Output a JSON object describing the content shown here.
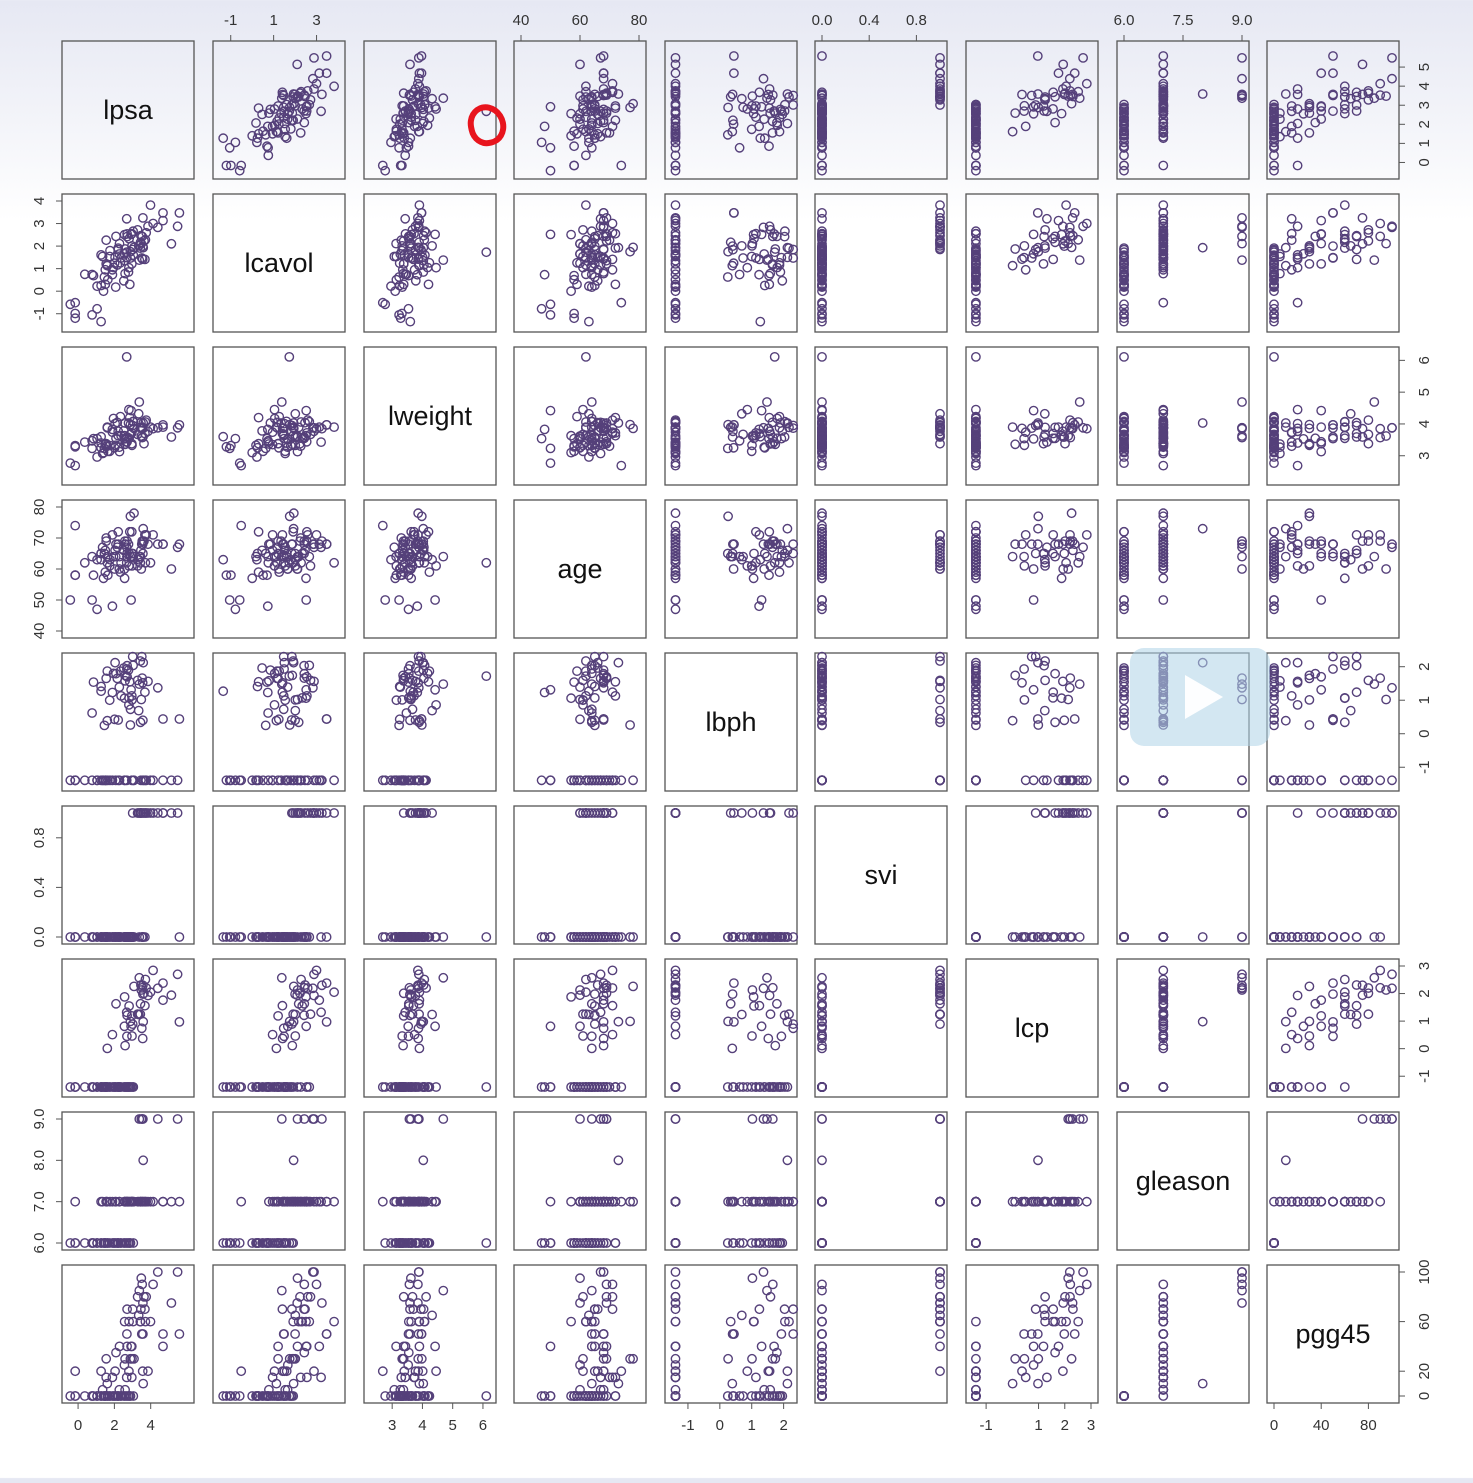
{
  "chart_data": {
    "type": "scatter",
    "variables": [
      {
        "name": "lpsa",
        "range": [
          -0.5,
          6.0
        ],
        "ticks": [
          0,
          2,
          4
        ],
        "tick_labels": [
          "0",
          "2",
          "4"
        ],
        "right_ticks": [
          0,
          1,
          2,
          3,
          4,
          5
        ],
        "right_labels": [
          "0",
          "1",
          "2",
          "3",
          "4",
          "5"
        ]
      },
      {
        "name": "lcavol",
        "range": [
          -1.5,
          4.0
        ],
        "ticks": [
          -1,
          1,
          3
        ],
        "tick_labels": [
          "-1",
          "1",
          "3"
        ],
        "left_ticks": [
          -1,
          0,
          1,
          2,
          3,
          4
        ],
        "left_labels": [
          "-1",
          "0",
          "1",
          "2",
          "3",
          "4"
        ]
      },
      {
        "name": "lweight",
        "range": [
          2.3,
          6.2
        ],
        "ticks": [
          3,
          4,
          5,
          6
        ],
        "tick_labels": [
          "3",
          "4",
          "5",
          "6"
        ],
        "right_ticks": [
          3,
          4,
          5,
          6
        ],
        "right_labels": [
          "3",
          "4",
          "5",
          "6"
        ]
      },
      {
        "name": "age",
        "range": [
          40,
          80
        ],
        "ticks": [
          40,
          60,
          80
        ],
        "tick_labels": [
          "40",
          "60",
          "80"
        ],
        "left_ticks": [
          40,
          50,
          60,
          70,
          80
        ],
        "left_labels": [
          "40",
          "50",
          "60",
          "70",
          "80"
        ]
      },
      {
        "name": "lbph",
        "range": [
          -1.5,
          2.2
        ],
        "ticks": [
          -1,
          0,
          1,
          2
        ],
        "tick_labels": [
          "-1",
          "0",
          "1",
          "2"
        ],
        "right_ticks": [
          -1,
          0,
          1,
          2
        ],
        "right_labels": [
          "-1",
          "0",
          "1",
          "2"
        ]
      },
      {
        "name": "svi",
        "range": [
          0,
          1
        ],
        "ticks": [
          0.0,
          0.4,
          0.8
        ],
        "tick_labels": [
          "0.0",
          "0.4",
          "0.8"
        ],
        "left_ticks": [
          0.0,
          0.4,
          0.8
        ],
        "left_labels": [
          "0.0",
          "0.4",
          "0.8"
        ]
      },
      {
        "name": "lcp",
        "range": [
          -1.5,
          3.0
        ],
        "ticks": [
          -1,
          1,
          2,
          3
        ],
        "tick_labels": [
          "-1",
          "1",
          "2",
          "3"
        ],
        "right_ticks": [
          -1,
          0,
          1,
          2,
          3
        ],
        "right_labels": [
          "-1",
          "0",
          "1",
          "2",
          "3"
        ]
      },
      {
        "name": "gleason",
        "range": [
          6,
          9
        ],
        "ticks": [
          6.0,
          7.5,
          9.0
        ],
        "tick_labels": [
          "6.0",
          "7.5",
          "9.0"
        ],
        "left_ticks": [
          6.0,
          7.0,
          8.0,
          9.0
        ],
        "left_labels": [
          "6.0",
          "7.0",
          "8.0",
          "9.0"
        ]
      },
      {
        "name": "pgg45",
        "range": [
          0,
          100
        ],
        "ticks": [
          0,
          40,
          80
        ],
        "tick_labels": [
          "0",
          "40",
          "80"
        ],
        "right_ticks": [
          0,
          20,
          60,
          100
        ],
        "right_labels": [
          "0",
          "20",
          "60",
          "100"
        ]
      }
    ],
    "points": [
      [
        -0.43,
        -0.58,
        2.77,
        50,
        -1.39,
        0,
        -1.39,
        6,
        0
      ],
      [
        -0.16,
        -0.99,
        3.32,
        58,
        -1.39,
        0,
        -1.39,
        6,
        0
      ],
      [
        -0.16,
        -0.51,
        2.69,
        74,
        -1.39,
        0,
        -1.39,
        7,
        20
      ],
      [
        -0.16,
        -1.2,
        3.28,
        58,
        -1.39,
        0,
        -1.39,
        6,
        0
      ],
      [
        0.37,
        0.75,
        3.43,
        62,
        -1.39,
        0,
        -1.39,
        6,
        0
      ],
      [
        0.77,
        -1.05,
        3.23,
        50,
        -1.39,
        0,
        -1.39,
        6,
        0
      ],
      [
        0.77,
        0.74,
        3.47,
        64,
        0.62,
        0,
        -1.39,
        6,
        0
      ],
      [
        0.85,
        0.69,
        3.54,
        58,
        1.54,
        0,
        -1.39,
        6,
        0
      ],
      [
        1.05,
        -0.78,
        3.54,
        47,
        -1.39,
        0,
        -1.39,
        6,
        0
      ],
      [
        1.05,
        0.22,
        2.96,
        63,
        -1.39,
        0,
        -1.39,
        6,
        0
      ],
      [
        1.27,
        0.25,
        3.25,
        65,
        1.41,
        0,
        -1.39,
        6,
        0
      ],
      [
        1.27,
        -1.35,
        3.6,
        63,
        1.27,
        0,
        -1.39,
        6,
        0
      ],
      [
        1.27,
        1.61,
        3.4,
        65,
        -1.39,
        0,
        -1.39,
        7,
        20
      ],
      [
        1.35,
        1.54,
        3.07,
        67,
        -1.39,
        0,
        -1.39,
        7,
        5
      ],
      [
        1.4,
        0.0,
        3.1,
        57,
        -1.39,
        0,
        -1.39,
        6,
        0
      ],
      [
        1.45,
        0.63,
        3.23,
        65,
        0.25,
        0,
        -1.39,
        6,
        0
      ],
      [
        1.5,
        0.95,
        3.35,
        66,
        -1.39,
        0,
        -1.39,
        6,
        0
      ],
      [
        1.5,
        0.3,
        3.38,
        59,
        -1.39,
        0,
        -1.39,
        6,
        0
      ],
      [
        1.55,
        1.21,
        3.38,
        69,
        1.65,
        0,
        -1.39,
        7,
        30
      ],
      [
        1.55,
        2.26,
        3.3,
        70,
        -1.39,
        0,
        -1.39,
        7,
        15
      ],
      [
        1.61,
        1.13,
        3.9,
        64,
        0.39,
        0,
        0.01,
        7,
        10
      ],
      [
        1.61,
        1.16,
        3.88,
        62,
        1.87,
        0,
        -1.39,
        6,
        0
      ],
      [
        1.64,
        0.51,
        3.14,
        58,
        -1.39,
        0,
        -1.39,
        6,
        0
      ],
      [
        1.74,
        1.54,
        3.14,
        61,
        1.0,
        0,
        -1.39,
        6,
        0
      ],
      [
        1.76,
        1.8,
        3.32,
        63,
        -1.39,
        0,
        -1.39,
        7,
        0
      ],
      [
        1.89,
        0.73,
        3.83,
        48,
        1.23,
        0,
        -1.39,
        6,
        0
      ],
      [
        1.89,
        0.95,
        3.74,
        71,
        -1.39,
        0,
        0.51,
        7,
        15
      ],
      [
        1.95,
        1.05,
        4.17,
        64,
        1.8,
        0,
        -1.39,
        6,
        0
      ],
      [
        2.01,
        1.24,
        3.25,
        60,
        0.43,
        0,
        -1.39,
        6,
        0
      ],
      [
        2.04,
        1.5,
        4.01,
        66,
        2.12,
        0,
        -1.39,
        7,
        20
      ],
      [
        2.07,
        0.18,
        3.33,
        64,
        -1.39,
        0,
        -1.39,
        6,
        0
      ],
      [
        2.09,
        2.43,
        3.55,
        68,
        1.79,
        0,
        1.63,
        7,
        35
      ],
      [
        2.16,
        1.16,
        4.05,
        67,
        1.65,
        0,
        -1.39,
        6,
        0
      ],
      [
        2.21,
        1.84,
        3.77,
        68,
        0.41,
        0,
        -1.39,
        6,
        0
      ],
      [
        2.21,
        1.91,
        3.63,
        72,
        -1.39,
        0,
        -1.39,
        6,
        0
      ],
      [
        2.27,
        1.65,
        3.27,
        60,
        1.39,
        0,
        -1.39,
        7,
        5
      ],
      [
        2.28,
        2.11,
        3.13,
        64,
        -1.39,
        0,
        -1.39,
        7,
        40
      ],
      [
        2.33,
        1.26,
        4.23,
        59,
        1.87,
        0,
        -1.39,
        6,
        0
      ],
      [
        2.37,
        1.47,
        3.63,
        62,
        1.13,
        0,
        -1.39,
        6,
        0
      ],
      [
        2.52,
        0.46,
        3.78,
        66,
        1.96,
        0,
        -1.39,
        6,
        0
      ],
      [
        2.55,
        1.66,
        3.53,
        60,
        -1.39,
        0,
        0.81,
        7,
        25
      ],
      [
        2.56,
        2.51,
        3.63,
        57,
        1.06,
        0,
        1.88,
        7,
        60
      ],
      [
        2.58,
        1.35,
        4.03,
        69,
        -1.39,
        0,
        -1.39,
        6,
        0
      ],
      [
        2.59,
        1.87,
        3.36,
        68,
        1.74,
        0,
        0.11,
        7,
        30
      ],
      [
        2.59,
        0.78,
        3.37,
        68,
        1.58,
        0,
        -1.39,
        7,
        5
      ],
      [
        2.68,
        3.21,
        3.43,
        67,
        -1.39,
        0,
        1.32,
        7,
        15
      ],
      [
        2.69,
        1.49,
        3.54,
        64,
        1.93,
        0,
        0.45,
        7,
        50
      ],
      [
        2.7,
        2.42,
        3.59,
        65,
        2.03,
        0,
        1.21,
        7,
        70
      ],
      [
        2.7,
        2.54,
        3.44,
        69,
        1.7,
        0,
        -1.39,
        7,
        40
      ],
      [
        2.78,
        0.85,
        4.03,
        68,
        1.9,
        0,
        -1.39,
        6,
        0
      ],
      [
        2.8,
        1.04,
        4.45,
        61,
        0.86,
        0,
        -1.39,
        7,
        20
      ],
      [
        2.81,
        2.33,
        3.55,
        65,
        1.07,
        0,
        1.55,
        7,
        60
      ],
      [
        2.88,
        1.75,
        3.98,
        77,
        0.26,
        0,
        0.99,
        7,
        30
      ],
      [
        2.89,
        1.47,
        3.67,
        64,
        0.73,
        0,
        -1.39,
        6,
        0
      ],
      [
        2.92,
        2.52,
        4.42,
        50,
        1.31,
        0,
        0.81,
        7,
        40
      ],
      [
        2.96,
        2.55,
        3.72,
        72,
        1.13,
        0,
        -1.39,
        7,
        15
      ],
      [
        2.96,
        1.21,
        3.38,
        65,
        -1.39,
        0,
        1.19,
        7,
        40
      ],
      [
        2.97,
        2.01,
        3.33,
        61,
        1.01,
        0,
        0.46,
        7,
        30
      ],
      [
        3.01,
        1.85,
        3.95,
        65,
        2.3,
        1,
        0.89,
        7,
        70
      ],
      [
        3.03,
        2.66,
        4.07,
        64,
        2.04,
        0,
        -1.39,
        7,
        60
      ],
      [
        3.04,
        1.6,
        4.08,
        64,
        -1.39,
        0,
        -1.39,
        6,
        0
      ],
      [
        3.08,
        1.94,
        3.86,
        78,
        -1.39,
        0,
        2.26,
        7,
        30
      ],
      [
        3.28,
        2.72,
        3.67,
        61,
        1.59,
        1,
        1.25,
        7,
        80
      ],
      [
        3.34,
        2.01,
        4.32,
        63,
        0.69,
        1,
        1.24,
        7,
        65
      ],
      [
        3.37,
        1.38,
        4.69,
        64,
        1.48,
        0,
        2.57,
        9,
        85
      ],
      [
        3.43,
        1.91,
        3.89,
        62,
        2.17,
        1,
        1.25,
        7,
        60
      ],
      [
        3.44,
        2.17,
        3.89,
        64,
        0.34,
        1,
        1.63,
        7,
        60
      ],
      [
        3.46,
        2.46,
        4.04,
        66,
        -1.39,
        1,
        2.31,
        7,
        70
      ],
      [
        3.48,
        2.11,
        3.62,
        60,
        1.02,
        1,
        2.13,
        9,
        95
      ],
      [
        3.51,
        1.47,
        3.87,
        68,
        2.3,
        0,
        0.74,
        7,
        50
      ],
      [
        3.53,
        2.43,
        3.57,
        69,
        1.66,
        0,
        2.21,
        9,
        90
      ],
      [
        3.56,
        1.42,
        3.86,
        68,
        1.52,
        0,
        0.37,
        7,
        20
      ],
      [
        3.57,
        2.0,
        3.59,
        65,
        0.4,
        0,
        1.98,
        7,
        50
      ],
      [
        3.57,
        3.25,
        3.85,
        69,
        -1.39,
        1,
        2.3,
        9,
        75
      ],
      [
        3.59,
        1.93,
        4.03,
        73,
        2.12,
        0,
        0.98,
        8,
        10
      ],
      [
        3.63,
        2.23,
        3.38,
        69,
        -1.39,
        1,
        2.01,
        7,
        80
      ],
      [
        3.68,
        1.41,
        3.7,
        71,
        1.24,
        0,
        1.56,
        7,
        70
      ],
      [
        3.71,
        2.28,
        4.06,
        62,
        -1.39,
        1,
        2.51,
        7,
        60
      ],
      [
        3.75,
        2.59,
        4.12,
        71,
        -1.39,
        1,
        2.2,
        7,
        80
      ],
      [
        3.85,
        2.88,
        3.77,
        68,
        1.56,
        1,
        1.93,
        7,
        20
      ],
      [
        3.99,
        3.82,
        3.9,
        62,
        -1.39,
        1,
        2.05,
        7,
        60
      ],
      [
        4.13,
        3.0,
        3.85,
        71,
        -1.39,
        1,
        2.84,
        7,
        90
      ],
      [
        4.39,
        2.83,
        3.88,
        68,
        1.37,
        1,
        2.19,
        9,
        100
      ],
      [
        4.68,
        3.47,
        3.97,
        68,
        0.44,
        1,
        2.38,
        7,
        50
      ],
      [
        4.68,
        3.13,
        3.9,
        68,
        -1.39,
        1,
        1.76,
        7,
        40
      ],
      [
        5.14,
        2.1,
        3.59,
        60,
        -1.39,
        1,
        1.94,
        7,
        75
      ],
      [
        5.48,
        2.88,
        3.88,
        67,
        -1.39,
        1,
        2.7,
        9,
        100
      ],
      [
        5.58,
        3.47,
        3.97,
        68,
        0.44,
        0,
        0.97,
        7,
        50
      ],
      [
        2.68,
        1.73,
        6.11,
        62,
        1.72,
        0,
        -1.39,
        6,
        0
      ],
      [
        2.85,
        0.3,
        4.2,
        72,
        1.55,
        0,
        -1.39,
        6,
        0
      ]
    ]
  }
}
